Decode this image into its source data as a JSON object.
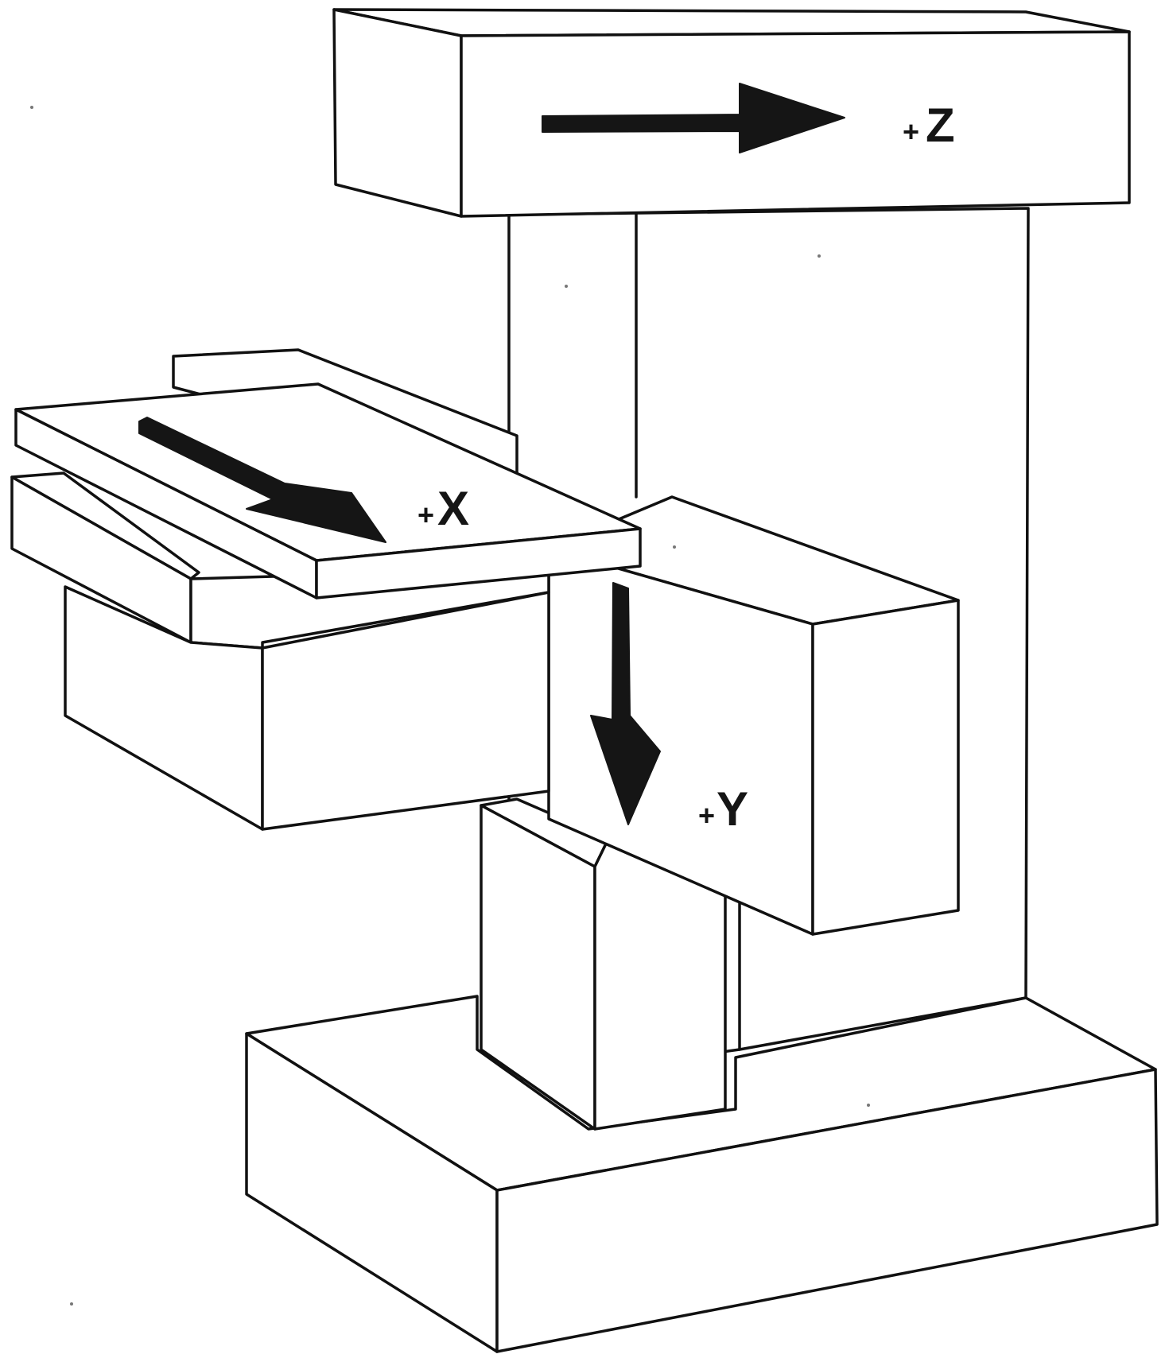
{
  "axes": {
    "z": {
      "sign": "+",
      "letter": "Z"
    },
    "x": {
      "sign": "+",
      "letter": "X"
    },
    "y": {
      "sign": "+",
      "letter": "Y"
    }
  },
  "colors": {
    "ink": "#151515",
    "paper": "#ffffff"
  }
}
